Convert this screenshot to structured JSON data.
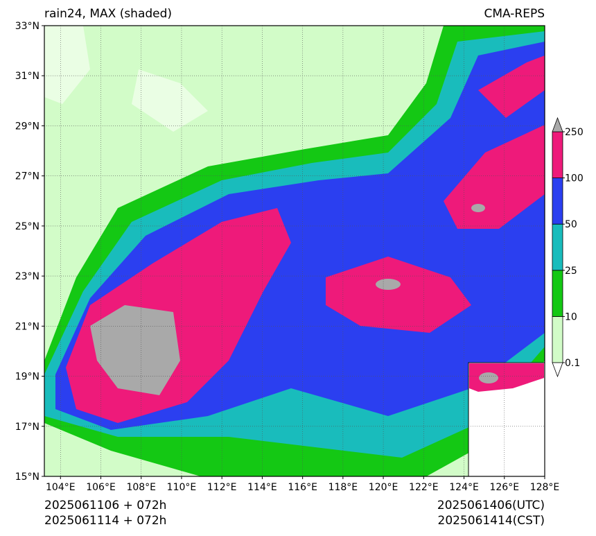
{
  "header": {
    "title": "rain24, MAX (shaded)",
    "source": "CMA-REPS"
  },
  "map": {
    "xlim": [
      103.2,
      128
    ],
    "ylim": [
      15,
      33
    ],
    "xticks": [
      {
        "value": 104,
        "label": "104°E"
      },
      {
        "value": 106,
        "label": "106°E"
      },
      {
        "value": 108,
        "label": "108°E"
      },
      {
        "value": 110,
        "label": "110°E"
      },
      {
        "value": 112,
        "label": "112°E"
      },
      {
        "value": 114,
        "label": "114°E"
      },
      {
        "value": 116,
        "label": "116°E"
      },
      {
        "value": 118,
        "label": "118°E"
      },
      {
        "value": 120,
        "label": "120°E"
      },
      {
        "value": 122,
        "label": "122°E"
      },
      {
        "value": 124,
        "label": "124°E"
      },
      {
        "value": 126,
        "label": "126°E"
      },
      {
        "value": 128,
        "label": "128°E"
      }
    ],
    "yticks": [
      {
        "value": 15,
        "label": "15°N"
      },
      {
        "value": 17,
        "label": "17°N"
      },
      {
        "value": 19,
        "label": "19°N"
      },
      {
        "value": 21,
        "label": "21°N"
      },
      {
        "value": 23,
        "label": "23°N"
      },
      {
        "value": 25,
        "label": "25°N"
      },
      {
        "value": 27,
        "label": "27°N"
      },
      {
        "value": 29,
        "label": "29°N"
      },
      {
        "value": 31,
        "label": "31°N"
      },
      {
        "value": 33,
        "label": "33°N"
      }
    ]
  },
  "colorbar": {
    "levels": [
      0.1,
      10,
      25,
      50,
      100,
      250
    ],
    "colors": [
      "#d2fcc8",
      "#14c814",
      "#19bcbc",
      "#2b3ff0",
      "#ee1a7a"
    ]
  },
  "footer": {
    "init_utc": "2025061106  +  072h",
    "init_cst": "2025061114  +  072h",
    "valid_utc": "2025061406(UTC)",
    "valid_cst": "2025061414(CST)"
  }
}
